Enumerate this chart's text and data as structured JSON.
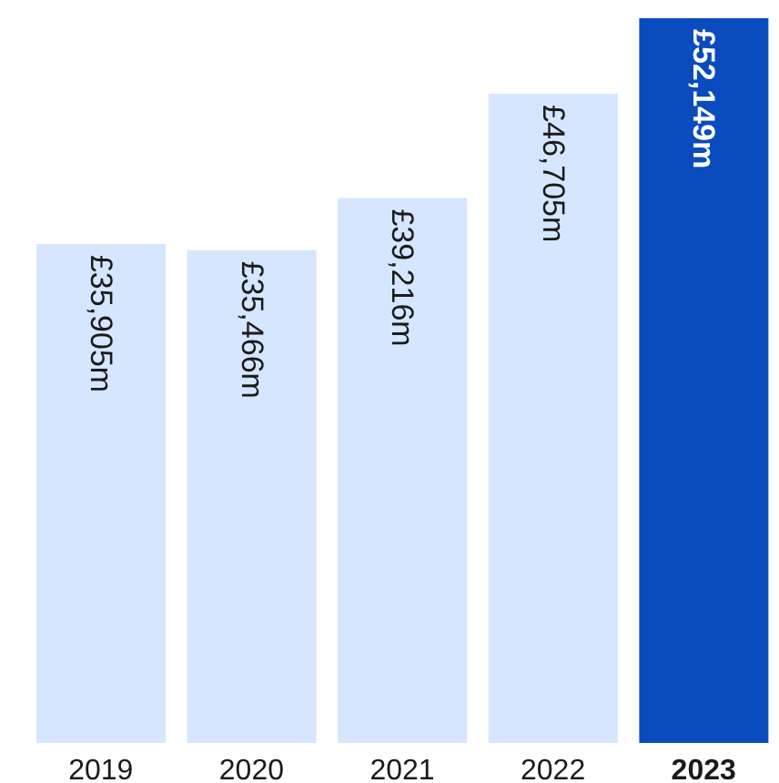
{
  "chart_data": {
    "type": "bar",
    "categories": [
      "2019",
      "2020",
      "2021",
      "2022",
      "2023"
    ],
    "values": [
      35905,
      35466,
      39216,
      46705,
      52149
    ],
    "colors": [
      "#d6e6ff",
      "#d6e6ff",
      "#d6e6ff",
      "#d6e6ff",
      "#0a4bbd"
    ],
    "value_labels": [
      "£35,905m",
      "£35,466m",
      "£39,216m",
      "£46,705m",
      "£52,149m"
    ],
    "grid": false,
    "legend": false
  }
}
